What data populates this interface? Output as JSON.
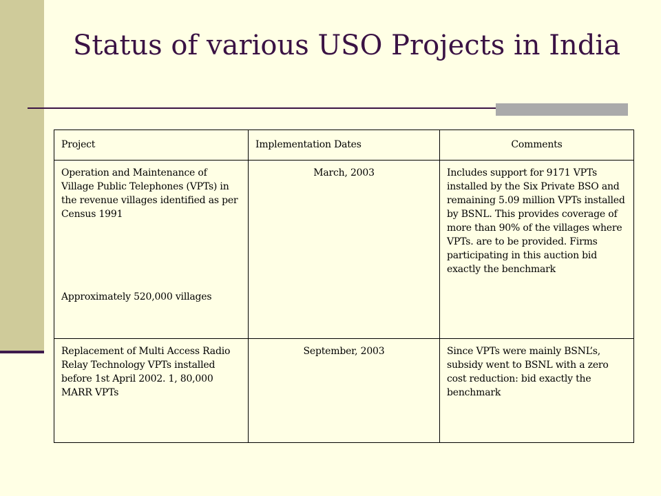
{
  "slide": {
    "title": "Status of various USO Projects in India"
  },
  "table": {
    "headers": {
      "project": "Project",
      "dates": "Implementation Dates",
      "comments": "Comments"
    },
    "rows": [
      {
        "project": "Operation and Maintenance of Village Public Telephones (VPTs) in the revenue villages identified as per Census 1991",
        "project_note": "Approximately 520,000 villages",
        "dates": "March, 2003",
        "comments": "Includes support for 9171 VPTs installed by the Six Private BSO and remaining 5.09 million VPTs installed by BSNL. This provides coverage of more than 90% of the villages where VPTs. are to be provided. Firms participating in this auction bid exactly the benchmark"
      },
      {
        "project": "Replacement of Multi Access Radio Relay Technology VPTs installed before 1st April 2002. 1, 80,000 MARR VPTs",
        "dates": "September, 2003",
        "comments": "Since VPTs were mainly BSNL’s,  subsidy went to BSNL with a zero cost reduction: bid exactly the benchmark"
      }
    ]
  },
  "colors": {
    "background": "#FFFFE5",
    "side_bar": "#CFCB9A",
    "title_text": "#3A1244",
    "accent_bar": "#AAAAAA"
  }
}
